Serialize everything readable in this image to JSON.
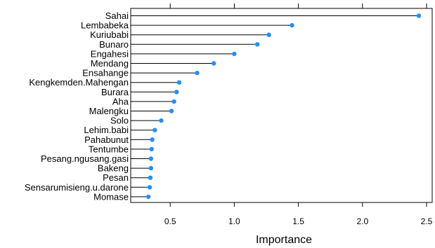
{
  "chart_data": {
    "type": "scatter",
    "subtype": "lollipop",
    "xlabel": "Importance",
    "ylabel": "",
    "xlim": [
      0.0,
      2.55
    ],
    "x_ticks": [
      0.5,
      1.0,
      1.5,
      2.0,
      2.5
    ],
    "x_tick_labels": [
      "0.5",
      "1.0",
      "1.5",
      "2.0",
      "2.5"
    ],
    "grid": false,
    "marker_color": "#1E90FF",
    "stem_color": "#000000",
    "categories": [
      "Sahai",
      "Lembabeka",
      "Kuriubabi",
      "Bunaro",
      "Engahesi",
      "Mendang",
      "Ensahange",
      "Kengkemden.Mahengan",
      "Burara",
      "Aha",
      "Malengku",
      "Solo",
      "Lehim.babi",
      "Pahabunut",
      "Tentumbe",
      "Pesang.ngusang.gasi",
      "Bakeng",
      "Pesan",
      "Sensarumisieng.u.darone",
      "Momase"
    ],
    "values": [
      2.44,
      1.45,
      1.27,
      1.18,
      1.0,
      0.84,
      0.71,
      0.57,
      0.55,
      0.53,
      0.51,
      0.43,
      0.38,
      0.36,
      0.355,
      0.35,
      0.35,
      0.345,
      0.34,
      0.33
    ]
  }
}
